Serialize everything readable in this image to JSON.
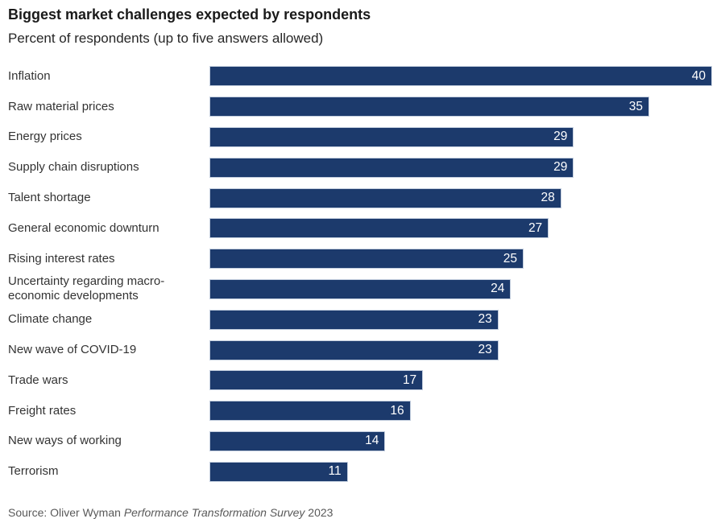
{
  "header": {
    "title": "Biggest market challenges expected by respondents",
    "subtitle": "Percent of respondents (up to five answers allowed)"
  },
  "chart_data": {
    "type": "bar",
    "orientation": "horizontal",
    "title": "Biggest market challenges expected by respondents",
    "subtitle": "Percent of respondents (up to five answers allowed)",
    "categories": [
      "Inflation",
      "Raw material prices",
      "Energy prices",
      "Supply chain disruptions",
      "Talent shortage",
      "General economic downturn",
      "Rising interest rates",
      "Uncertainty regarding macro-economic developments",
      "Climate change",
      "New wave of COVID-19",
      "Trade wars",
      "Freight rates",
      "New ways of working",
      "Terrorism"
    ],
    "values": [
      40,
      35,
      29,
      29,
      28,
      27,
      25,
      24,
      23,
      23,
      17,
      16,
      14,
      11
    ],
    "xlim": [
      0,
      40
    ],
    "value_labels": "inside-end",
    "grid": false,
    "legend": false,
    "bar_color": "#1c3a6c",
    "value_label_color": "#ffffff",
    "category_label_color": "#333333"
  },
  "footer": {
    "source_prefix": "Source: Oliver Wyman ",
    "source_italic": "Performance Transformation Survey",
    "source_suffix": " 2023"
  }
}
